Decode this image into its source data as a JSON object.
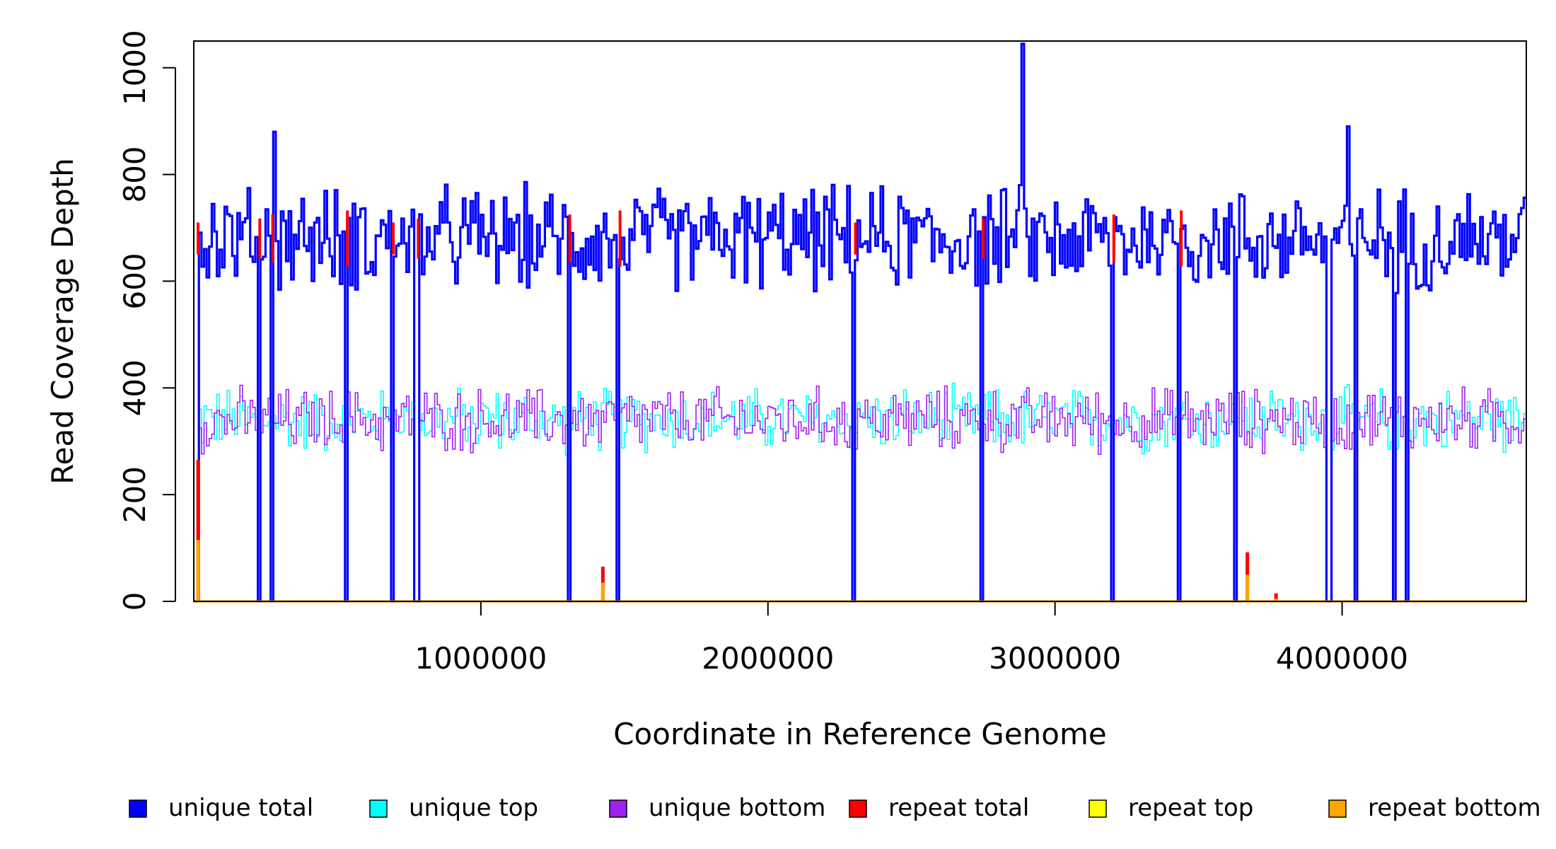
{
  "chart_data": {
    "type": "line",
    "title": "",
    "xlabel": "Coordinate in Reference Genome",
    "ylabel": "Read Coverage Depth",
    "xlim": [
      0,
      4641652
    ],
    "ylim": [
      0,
      1050
    ],
    "x_ticks": [
      1000000,
      2000000,
      3000000,
      4000000
    ],
    "x_tick_labels": [
      "1000000",
      "2000000",
      "3000000",
      "4000000"
    ],
    "y_ticks": [
      0,
      200,
      400,
      600,
      800,
      1000
    ],
    "y_tick_labels": [
      "0",
      "200",
      "400",
      "600",
      "800",
      "1000"
    ],
    "series": [
      {
        "name": "unique total",
        "color": "#0000ff",
        "baseline": 680,
        "spread": 95
      },
      {
        "name": "unique top",
        "color": "#00ffff",
        "baseline": 340,
        "spread": 48
      },
      {
        "name": "unique bottom",
        "color": "#a020f0",
        "baseline": 340,
        "spread": 48
      },
      {
        "name": "repeat total",
        "color": "#ff0000",
        "baseline": 0,
        "spread": 0
      },
      {
        "name": "repeat top",
        "color": "#ffff00",
        "baseline": 0,
        "spread": 0
      },
      {
        "name": "repeat bottom",
        "color": "#ffa500",
        "baseline": 0,
        "spread": 0
      }
    ],
    "dropouts": [
      5000,
      220000,
      265000,
      525000,
      685000,
      772000,
      1300000,
      1475000,
      2295000,
      2740000,
      3195000,
      3430000,
      3625000,
      3950000,
      4045000,
      4180000,
      4220000
    ],
    "repeat_peaks": [
      {
        "x": 15000,
        "total": 265,
        "bottom": 115
      },
      {
        "x": 1425000,
        "total": 65,
        "bottom": 35
      },
      {
        "x": 3670000,
        "total": 92,
        "bottom": 50
      },
      {
        "x": 3770000,
        "total": 15,
        "bottom": 5
      }
    ],
    "notable_peaks": [
      {
        "x": 2880000,
        "value": 1045
      },
      {
        "x": 275000,
        "value": 880
      },
      {
        "x": 4015000,
        "value": 890
      }
    ],
    "legend_position": "bottom"
  }
}
